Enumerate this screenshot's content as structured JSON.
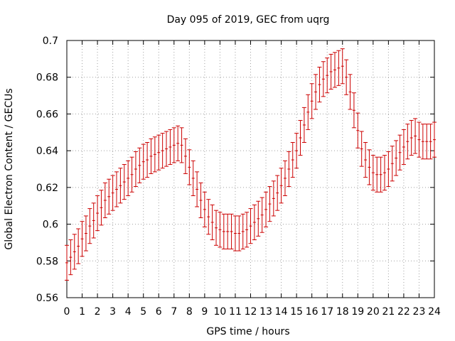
{
  "chart_data": {
    "type": "scatter",
    "title": "Day 095 of 2019, GEC from uqrg",
    "xlabel": "GPS time / hours",
    "ylabel": "Global Electron Content / GECUs",
    "xlim": [
      0,
      24
    ],
    "ylim": [
      0.56,
      0.7
    ],
    "x_ticks": [
      0,
      1,
      2,
      3,
      4,
      5,
      6,
      7,
      8,
      9,
      10,
      11,
      12,
      13,
      14,
      15,
      16,
      17,
      18,
      19,
      20,
      21,
      22,
      23,
      24
    ],
    "x_tick_labels": [
      "0",
      "1",
      "2",
      "3",
      "4",
      "5",
      "6",
      "7",
      "8",
      "9",
      "10",
      "11",
      "12",
      "13",
      "14",
      "15",
      "16",
      "17",
      "18",
      "19",
      "20",
      "21",
      "22",
      "23",
      "24"
    ],
    "y_ticks": [
      0.56,
      0.58,
      0.6,
      0.62,
      0.64,
      0.66,
      0.68,
      0.7
    ],
    "y_tick_labels": [
      "0.56",
      "0.58",
      "0.6",
      "0.62",
      "0.64",
      "0.66",
      "0.68",
      "0.7"
    ],
    "grid": true,
    "series": [
      {
        "name": "GEC",
        "color": "#cc0000",
        "style": "errorbars",
        "error": 0.0095,
        "x": [
          0,
          0.25,
          0.5,
          0.75,
          1,
          1.25,
          1.5,
          1.75,
          2,
          2.25,
          2.5,
          2.75,
          3,
          3.25,
          3.5,
          3.75,
          4,
          4.25,
          4.5,
          4.75,
          5,
          5.25,
          5.5,
          5.75,
          6,
          6.25,
          6.5,
          6.75,
          7,
          7.25,
          7.5,
          7.75,
          8,
          8.25,
          8.5,
          8.75,
          9,
          9.25,
          9.5,
          9.75,
          10,
          10.25,
          10.5,
          10.75,
          11,
          11.25,
          11.5,
          11.75,
          12,
          12.25,
          12.5,
          12.75,
          13,
          13.25,
          13.5,
          13.75,
          14,
          14.25,
          14.5,
          14.75,
          15,
          15.25,
          15.5,
          15.75,
          16,
          16.25,
          16.5,
          16.75,
          17,
          17.25,
          17.5,
          17.75,
          18,
          18.25,
          18.5,
          18.75,
          19,
          19.25,
          19.5,
          19.75,
          20,
          20.25,
          20.5,
          20.75,
          21,
          21.25,
          21.5,
          21.75,
          22,
          22.25,
          22.5,
          22.75,
          23,
          23.25,
          23.5,
          23.75,
          24
        ],
        "y": [
          0.579,
          0.582,
          0.585,
          0.588,
          0.592,
          0.595,
          0.599,
          0.602,
          0.606,
          0.609,
          0.613,
          0.615,
          0.617,
          0.619,
          0.621,
          0.623,
          0.625,
          0.627,
          0.63,
          0.632,
          0.634,
          0.635,
          0.637,
          0.638,
          0.639,
          0.64,
          0.641,
          0.642,
          0.643,
          0.644,
          0.643,
          0.637,
          0.631,
          0.625,
          0.619,
          0.613,
          0.608,
          0.604,
          0.601,
          0.598,
          0.597,
          0.596,
          0.596,
          0.596,
          0.595,
          0.595,
          0.596,
          0.597,
          0.599,
          0.601,
          0.603,
          0.605,
          0.608,
          0.611,
          0.614,
          0.617,
          0.621,
          0.625,
          0.63,
          0.635,
          0.64,
          0.647,
          0.654,
          0.661,
          0.667,
          0.672,
          0.676,
          0.679,
          0.681,
          0.683,
          0.684,
          0.685,
          0.686,
          0.68,
          0.672,
          0.662,
          0.651,
          0.641,
          0.635,
          0.631,
          0.628,
          0.627,
          0.627,
          0.628,
          0.63,
          0.633,
          0.636,
          0.639,
          0.642,
          0.645,
          0.647,
          0.648,
          0.646,
          0.645,
          0.645,
          0.645,
          0.646
        ]
      }
    ]
  }
}
